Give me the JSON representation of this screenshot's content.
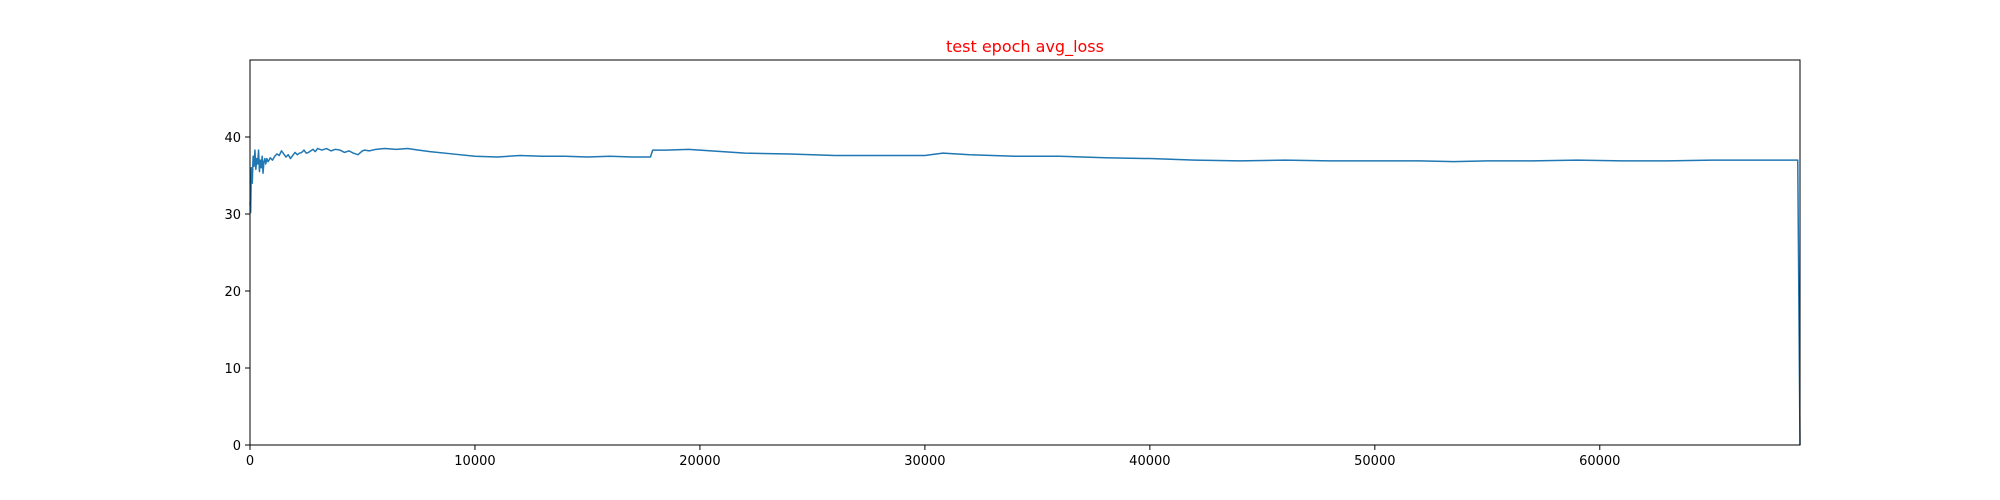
{
  "chart_data": {
    "type": "line",
    "title": "test epoch avg_loss",
    "title_color": "#ff0000",
    "xlabel": "",
    "ylabel": "",
    "xlim": [
      0,
      68900
    ],
    "ylim": [
      0,
      50
    ],
    "xticks": [
      0,
      10000,
      20000,
      30000,
      40000,
      50000,
      60000
    ],
    "yticks": [
      0,
      10,
      20,
      30,
      40
    ],
    "grid": false,
    "series": [
      {
        "color": "#1f77b4",
        "x": [
          0,
          30,
          60,
          100,
          140,
          180,
          220,
          260,
          300,
          340,
          380,
          420,
          460,
          500,
          540,
          580,
          620,
          660,
          700,
          750,
          800,
          850,
          900,
          1000,
          1100,
          1200,
          1300,
          1400,
          1500,
          1600,
          1700,
          1800,
          1900,
          2000,
          2100,
          2200,
          2300,
          2400,
          2500,
          2600,
          2700,
          2800,
          2900,
          3000,
          3200,
          3400,
          3600,
          3800,
          4000,
          4200,
          4400,
          4600,
          4800,
          5000,
          5100,
          5300,
          5600,
          6000,
          6500,
          7000,
          7500,
          8000,
          9000,
          10000,
          11000,
          12000,
          13000,
          14000,
          15000,
          16000,
          17000,
          17800,
          17900,
          18500,
          19500,
          20500,
          22000,
          24000,
          26000,
          28000,
          30000,
          30800,
          32000,
          34000,
          36000,
          38000,
          40000,
          42000,
          44000,
          46000,
          48000,
          50000,
          52000,
          53500,
          55000,
          57000,
          59000,
          61000,
          63000,
          65000,
          67000,
          68800,
          68900
        ],
        "y": [
          31.5,
          30.2,
          36.0,
          34.0,
          37.5,
          36.2,
          38.3,
          35.8,
          37.2,
          36.5,
          38.3,
          35.5,
          37.0,
          36.0,
          37.5,
          35.3,
          36.8,
          37.2,
          36.5,
          37.2,
          36.8,
          37.0,
          37.3,
          37.0,
          37.5,
          37.8,
          37.6,
          38.2,
          37.8,
          37.4,
          37.7,
          37.2,
          37.6,
          38.0,
          37.7,
          37.9,
          38.0,
          38.3,
          37.9,
          38.0,
          38.2,
          38.4,
          38.1,
          38.5,
          38.3,
          38.5,
          38.2,
          38.4,
          38.3,
          38.0,
          38.2,
          37.9,
          37.7,
          38.2,
          38.3,
          38.2,
          38.4,
          38.5,
          38.4,
          38.5,
          38.3,
          38.1,
          37.8,
          37.5,
          37.4,
          37.6,
          37.5,
          37.5,
          37.4,
          37.5,
          37.4,
          37.4,
          38.3,
          38.3,
          38.4,
          38.2,
          37.9,
          37.8,
          37.6,
          37.6,
          37.6,
          37.9,
          37.7,
          37.5,
          37.5,
          37.3,
          37.2,
          37.0,
          36.9,
          37.0,
          36.9,
          36.9,
          36.9,
          36.8,
          36.9,
          36.9,
          37.0,
          36.9,
          36.9,
          37.0,
          37.0,
          37.0,
          0.0
        ]
      }
    ]
  }
}
